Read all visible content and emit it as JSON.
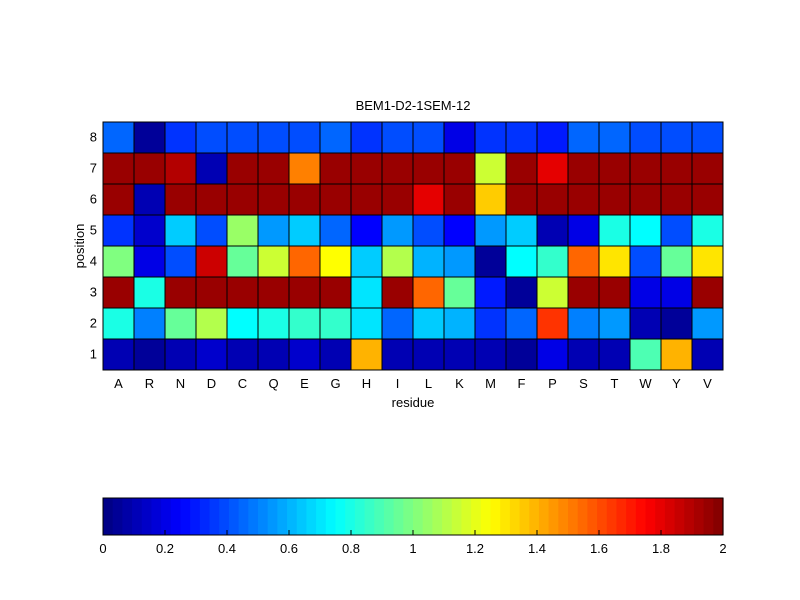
{
  "chart_data": {
    "type": "heatmap",
    "title": "BEM1-D2-1SEM-12",
    "xlabel": "residue",
    "ylabel": "position",
    "x_categories": [
      "A",
      "R",
      "N",
      "D",
      "C",
      "Q",
      "E",
      "G",
      "H",
      "I",
      "L",
      "K",
      "M",
      "F",
      "P",
      "S",
      "T",
      "W",
      "Y",
      "V"
    ],
    "y_categories": [
      "8",
      "7",
      "6",
      "5",
      "4",
      "3",
      "2",
      "1"
    ],
    "color_range": [
      0,
      2
    ],
    "colormap": "jet",
    "colorbar_ticks": [
      "0",
      "0.2",
      "0.4",
      "0.6",
      "0.8",
      "1",
      "1.2",
      "1.4",
      "1.6",
      "1.8",
      "2"
    ],
    "values": [
      [
        0.45,
        0.05,
        0.35,
        0.4,
        0.4,
        0.4,
        0.4,
        0.45,
        0.35,
        0.4,
        0.4,
        0.2,
        0.35,
        0.35,
        0.3,
        0.45,
        0.45,
        0.4,
        0.4,
        0.4
      ],
      [
        1.95,
        1.95,
        1.9,
        0.1,
        1.95,
        1.95,
        1.5,
        1.95,
        1.95,
        1.95,
        1.95,
        1.95,
        1.15,
        1.95,
        1.8,
        1.95,
        1.95,
        1.95,
        1.95,
        1.95
      ],
      [
        1.95,
        0.1,
        1.95,
        1.95,
        1.95,
        1.95,
        1.95,
        1.95,
        1.95,
        1.95,
        1.8,
        1.95,
        1.35,
        1.95,
        1.95,
        1.95,
        1.95,
        1.95,
        1.95,
        1.95
      ],
      [
        0.35,
        0.15,
        0.65,
        0.4,
        1.05,
        0.55,
        0.65,
        0.45,
        0.25,
        0.55,
        0.4,
        0.25,
        0.55,
        0.65,
        0.1,
        0.2,
        0.8,
        0.75,
        0.4,
        0.8
      ],
      [
        1.0,
        0.2,
        0.4,
        1.85,
        0.95,
        1.15,
        1.55,
        1.25,
        0.65,
        1.1,
        0.6,
        0.55,
        0.05,
        0.75,
        0.85,
        1.55,
        1.3,
        0.4,
        0.95,
        1.3
      ],
      [
        1.95,
        0.8,
        1.95,
        1.95,
        1.95,
        1.95,
        1.95,
        1.95,
        0.7,
        1.95,
        1.55,
        0.95,
        0.3,
        0.05,
        1.15,
        1.95,
        1.95,
        0.2,
        0.2,
        1.95
      ],
      [
        0.8,
        0.5,
        0.95,
        1.1,
        0.75,
        0.8,
        0.85,
        0.85,
        0.7,
        0.45,
        0.65,
        0.6,
        0.35,
        0.45,
        1.65,
        0.5,
        0.55,
        0.1,
        0.05,
        0.55
      ],
      [
        0.1,
        0.05,
        0.1,
        0.15,
        0.1,
        0.1,
        0.15,
        0.1,
        1.4,
        0.1,
        0.1,
        0.1,
        0.1,
        0.05,
        0.2,
        0.1,
        0.1,
        0.9,
        1.4,
        0.1
      ]
    ]
  }
}
